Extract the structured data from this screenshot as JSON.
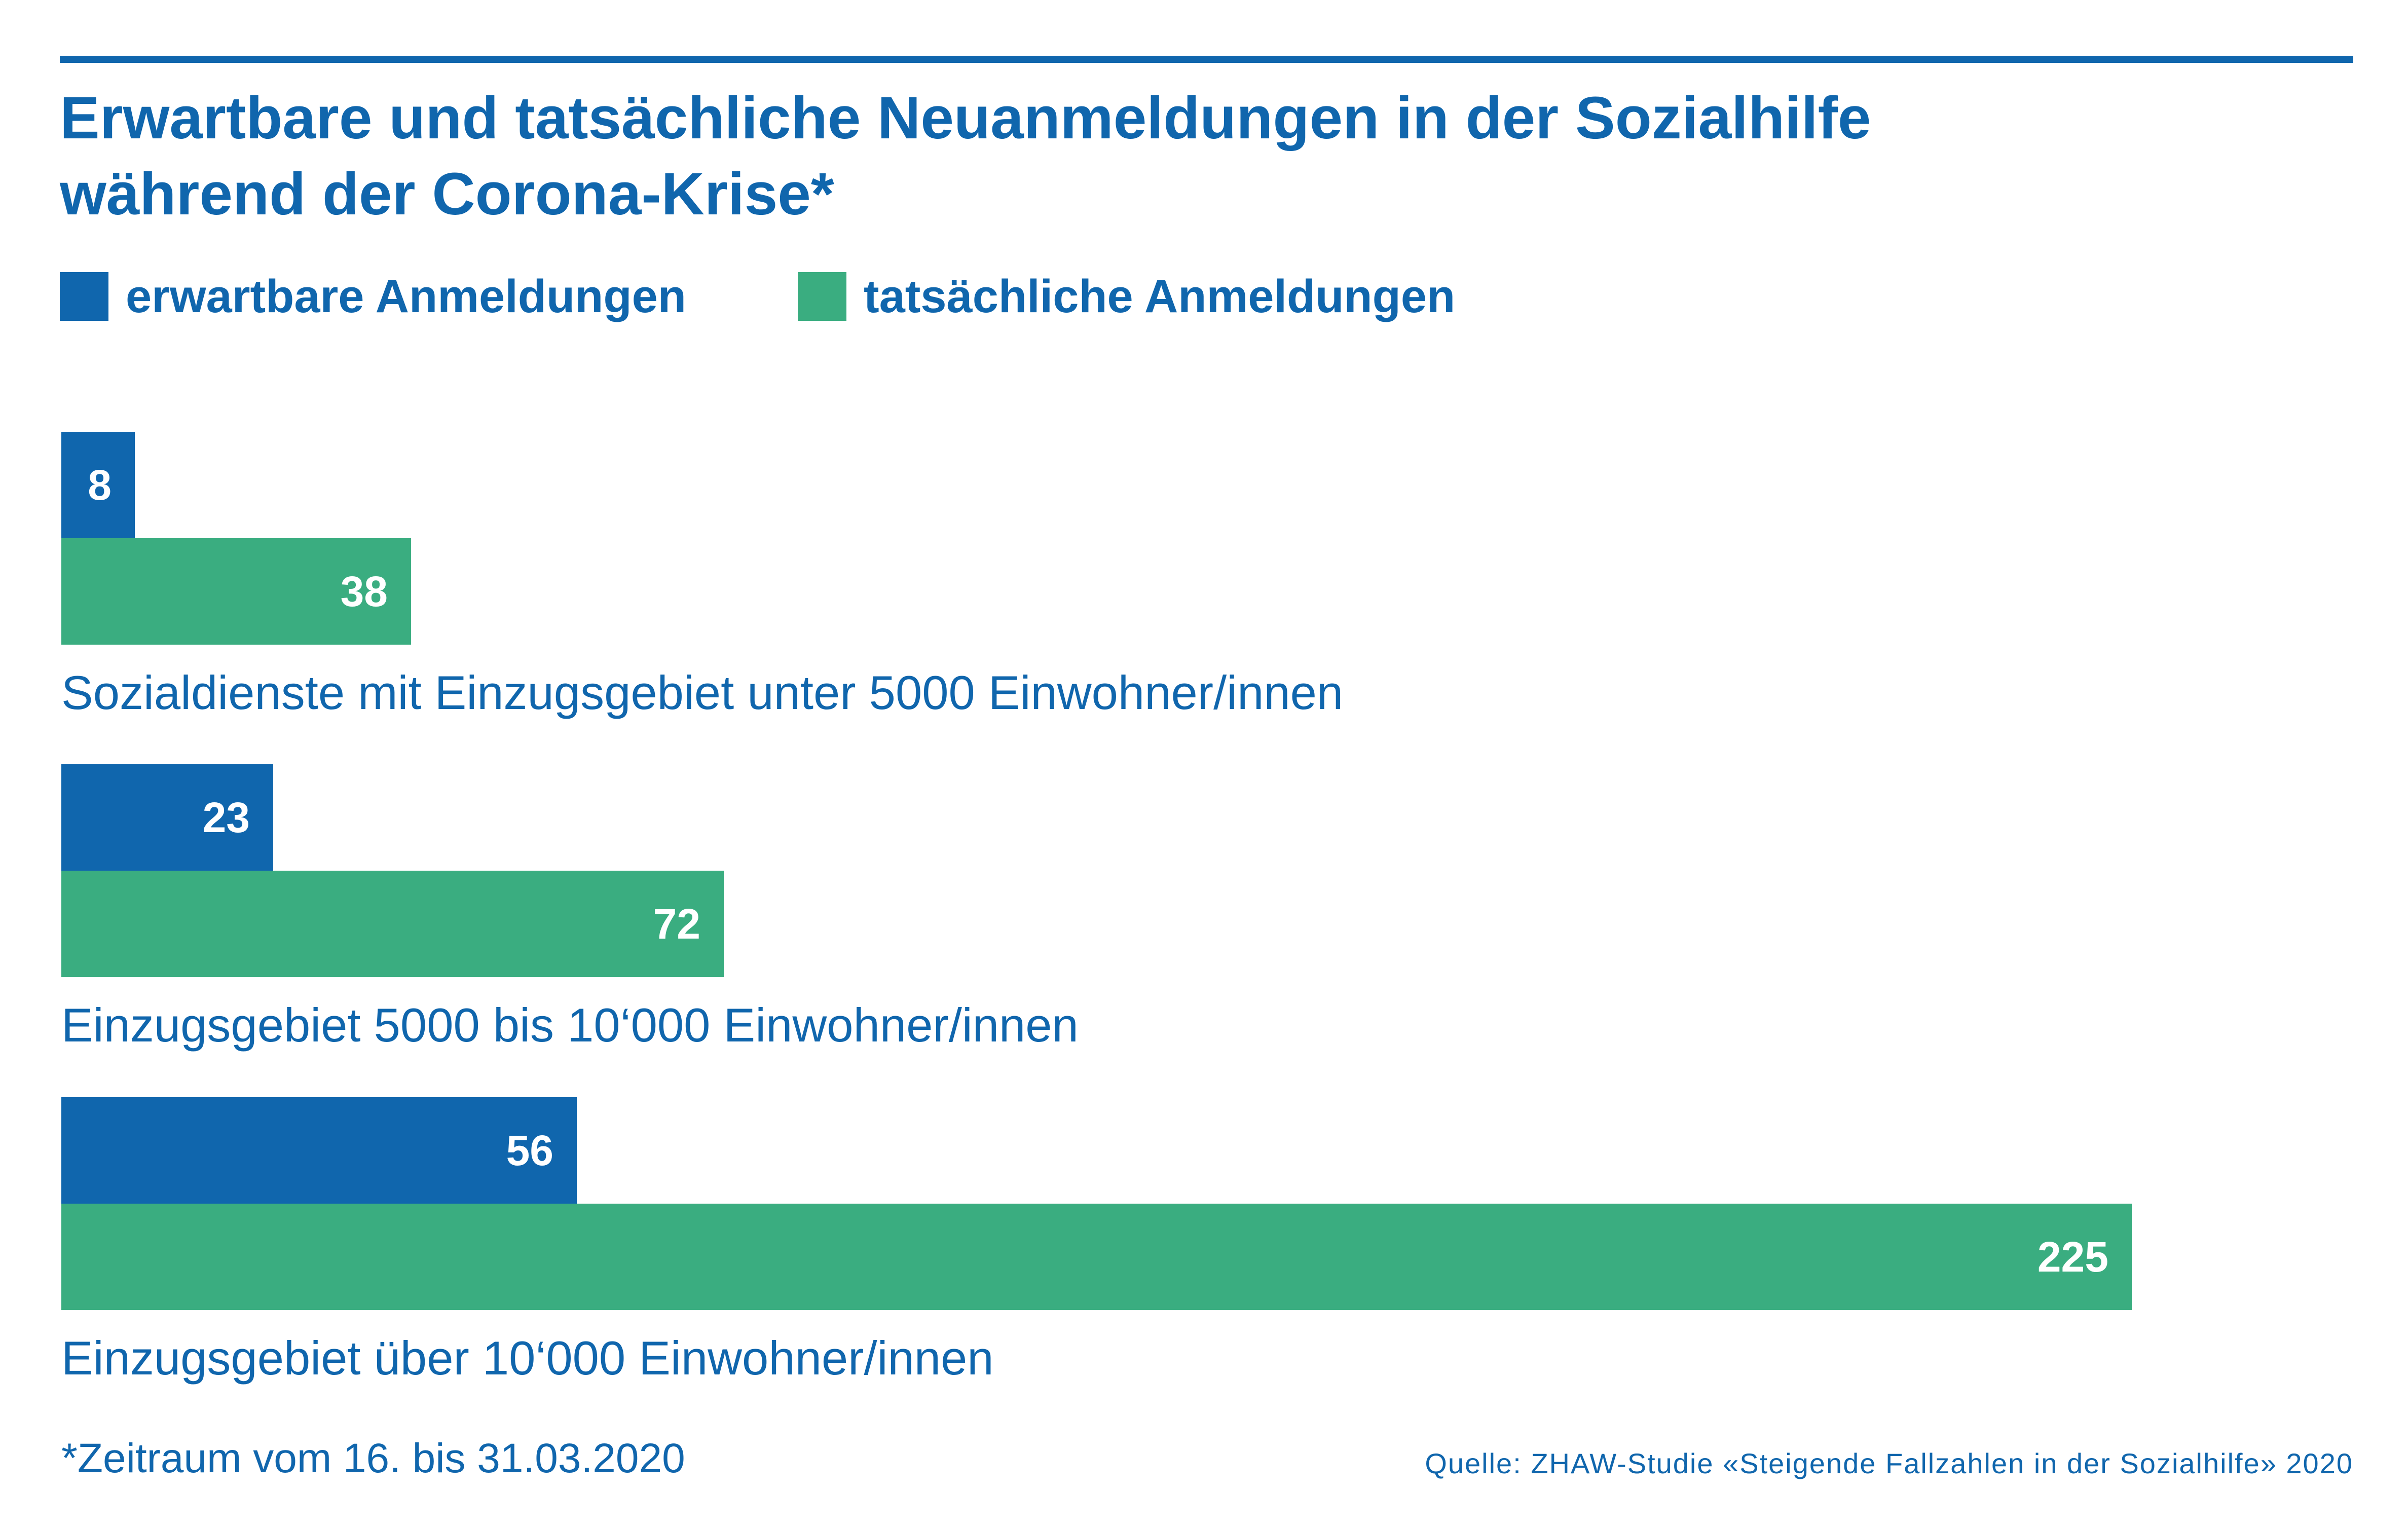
{
  "colors": {
    "accent": "#1066ad",
    "expected": "#1066ad",
    "actual": "#3aad80",
    "background": "#ffffff"
  },
  "chart_data": {
    "type": "bar",
    "orientation": "horizontal",
    "title": "Erwartbare und tatsächliche Neuanmeldungen in der Sozialhilfe während der Corona-Krise*",
    "title_lines": [
      "Erwartbare und tatsächliche Neuanmeldungen in der Sozialhilfe",
      "während der Corona-Krise*"
    ],
    "categories": [
      "Sozialdienste mit Einzugsgebiet unter 5000 Einwohner/innen",
      "Einzugsgebiet 5000 bis 10‘000 Einwohner/innen",
      "Einzugsgebiet über 10‘000 Einwohner/innen"
    ],
    "series": [
      {
        "name": "erwartbare Anmeldungen",
        "color": "#1066ad",
        "values": [
          8,
          23,
          56
        ]
      },
      {
        "name": "tatsächliche Anmeldungen",
        "color": "#3aad80",
        "values": [
          38,
          72,
          225
        ]
      }
    ],
    "xlim": [
      0,
      225
    ],
    "grid": false,
    "legend_position": "top-left",
    "data_labels": true,
    "footnote": "*Zeitraum vom 16. bis 31.03.2020",
    "source": "Quelle:  ZHAW-Studie «Steigende Fallzahlen in der Sozialhilfe» 2020"
  }
}
